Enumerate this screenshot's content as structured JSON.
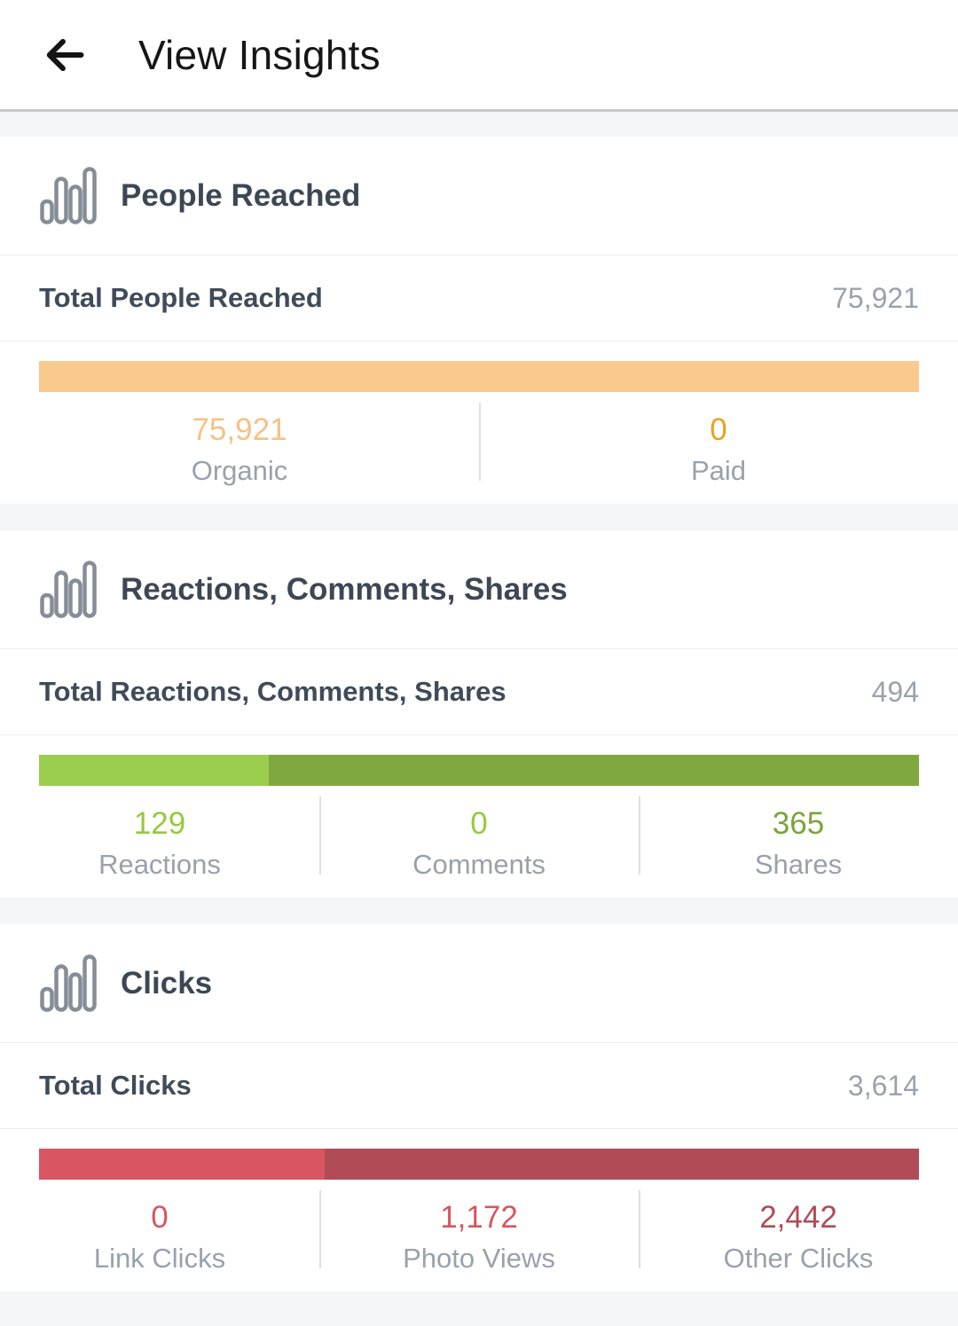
{
  "header": {
    "title": "View Insights"
  },
  "sections": [
    {
      "id": "people-reached",
      "title": "People Reached",
      "total_label": "Total People Reached",
      "total_value": "75,921",
      "segments": [
        {
          "label": "Organic",
          "value": 75921,
          "color": "#fac98d"
        },
        {
          "label": "Paid",
          "value": 0,
          "color": "#e8a31d"
        }
      ],
      "stats": [
        {
          "value": "75,921",
          "label": "Organic",
          "color": "#f7c183"
        },
        {
          "value": "0",
          "label": "Paid",
          "color": "#e8a31d"
        }
      ]
    },
    {
      "id": "reactions-comments-shares",
      "title": "Reactions, Comments, Shares",
      "total_label": "Total Reactions, Comments, Shares",
      "total_value": "494",
      "segments": [
        {
          "label": "Reactions",
          "value": 129,
          "color": "#9bce4e"
        },
        {
          "label": "Comments",
          "value": 0,
          "color": "#8abf46"
        },
        {
          "label": "Shares",
          "value": 365,
          "color": "#7fa93e"
        }
      ],
      "stats": [
        {
          "value": "129",
          "label": "Reactions",
          "color": "#97c93f"
        },
        {
          "value": "0",
          "label": "Comments",
          "color": "#97c93f"
        },
        {
          "value": "365",
          "label": "Shares",
          "color": "#7ca33a"
        }
      ]
    },
    {
      "id": "clicks",
      "title": "Clicks",
      "total_label": "Total Clicks",
      "total_value": "3,614",
      "segments": [
        {
          "label": "Link Clicks",
          "value": 0,
          "color": "#e4596a"
        },
        {
          "label": "Photo Views",
          "value": 1172,
          "color": "#d95562"
        },
        {
          "label": "Other Clicks",
          "value": 2442,
          "color": "#b14c56"
        }
      ],
      "stats": [
        {
          "value": "0",
          "label": "Link Clicks",
          "color": "#d95560"
        },
        {
          "value": "1,172",
          "label": "Photo Views",
          "color": "#d95560"
        },
        {
          "value": "2,442",
          "label": "Other Clicks",
          "color": "#b04c55"
        }
      ]
    }
  ],
  "chart_data": [
    {
      "type": "bar",
      "title": "Total People Reached",
      "total": 75921,
      "categories": [
        "Organic",
        "Paid"
      ],
      "values": [
        75921,
        0
      ],
      "layout": "single stacked horizontal bar"
    },
    {
      "type": "bar",
      "title": "Total Reactions, Comments, Shares",
      "total": 494,
      "categories": [
        "Reactions",
        "Comments",
        "Shares"
      ],
      "values": [
        129,
        0,
        365
      ],
      "layout": "single stacked horizontal bar"
    },
    {
      "type": "bar",
      "title": "Total Clicks",
      "total": 3614,
      "categories": [
        "Link Clicks",
        "Photo Views",
        "Other Clicks"
      ],
      "values": [
        0,
        1172,
        2442
      ],
      "layout": "single stacked horizontal bar"
    }
  ],
  "colors": {
    "band": "#f4f5f7",
    "divider": "#ecedf0",
    "header_divider": "#c6c8cc",
    "icon_gray": "#878d97"
  }
}
